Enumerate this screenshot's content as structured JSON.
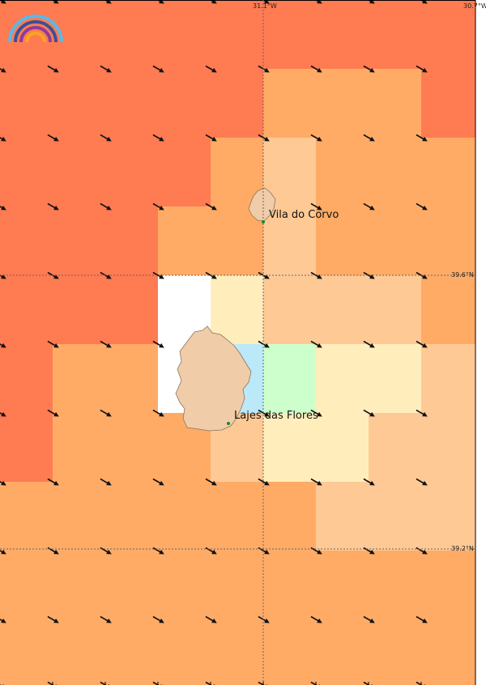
{
  "map": {
    "palette": {
      "c1": "#ff7b52",
      "c2": "#ffab66",
      "c3": "#ffc995",
      "c4": "#ffeebb",
      "c5": "#ffffff",
      "c6": "#bbe9f9",
      "c7": "#ccffcc"
    },
    "rows": [
      [
        "c1",
        "c1",
        "c1",
        "c1",
        "c1",
        "c1",
        "c1",
        "c1",
        "c1"
      ],
      [
        "c1",
        "c1",
        "c1",
        "c1",
        "c1",
        "c2",
        "c2",
        "c2",
        "c1"
      ],
      [
        "c1",
        "c1",
        "c1",
        "c1",
        "c2",
        "c3",
        "c2",
        "c2",
        "c2"
      ],
      [
        "c1",
        "c1",
        "c1",
        "c2",
        "c2",
        "c3",
        "c2",
        "c2",
        "c2"
      ],
      [
        "c1",
        "c1",
        "c1",
        "c5",
        "c4",
        "c3",
        "c3",
        "c3",
        "c2"
      ],
      [
        "c1",
        "c2",
        "c2",
        "c5",
        "c6",
        "c7",
        "c4",
        "c4",
        "c3"
      ],
      [
        "c1",
        "c2",
        "c2",
        "c2",
        "c3",
        "c4",
        "c4",
        "c3",
        "c3"
      ],
      [
        "c2",
        "c2",
        "c2",
        "c2",
        "c2",
        "c2",
        "c3",
        "c3",
        "c3"
      ],
      [
        "c2",
        "c2",
        "c2",
        "c2",
        "c2",
        "c2",
        "c2",
        "c2",
        "c2"
      ],
      [
        "c2",
        "c2",
        "c2",
        "c2",
        "c2",
        "c2",
        "c2",
        "c2",
        "c2"
      ]
    ],
    "gridlines": {
      "lon_labels": [
        "31.1°W",
        "30.7°W"
      ],
      "lat_labels": [
        "39.6°N",
        "39.2°N"
      ]
    },
    "places": [
      {
        "name": "Vila do Corvo"
      },
      {
        "name": "Lajes das Flores"
      }
    ],
    "colors": {
      "land": "#f0cca8",
      "land_outline": "#8a7560",
      "arrow": "#111111",
      "marker": "#1a8a1a"
    },
    "logo": {
      "icon": "rainbow-logo-icon"
    }
  }
}
